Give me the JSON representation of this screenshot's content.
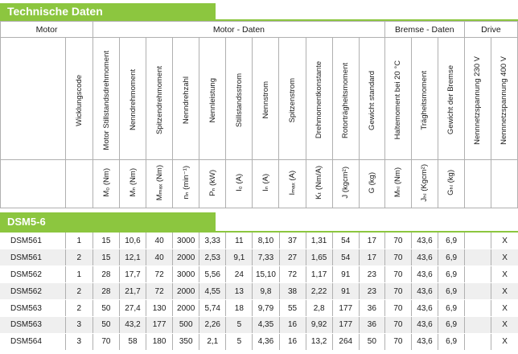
{
  "title": "Technische Daten",
  "groups": [
    "Motor",
    "Motor - Daten",
    "Bremse - Daten",
    "Drive"
  ],
  "columns": [
    {
      "name": "",
      "unit": ""
    },
    {
      "name": "Wicklungscode",
      "unit": ""
    },
    {
      "name": "Motor Stillstandsdrehmoment",
      "unit": "M₀ (Nm)"
    },
    {
      "name": "Nenndrehmoment",
      "unit": "Mₙ (Nm)"
    },
    {
      "name": "Spitzendrehmoment",
      "unit": "Mₘₐₓ (Nm)"
    },
    {
      "name": "Nenndrehzahl",
      "unit": "nₙ (min⁻¹)"
    },
    {
      "name": "Nennleistung",
      "unit": "Pₙ (kW)"
    },
    {
      "name": "Stillstandsstrom",
      "unit": "I₀ (A)"
    },
    {
      "name": "Nennstrom",
      "unit": "Iₙ (A)"
    },
    {
      "name": "Spitzenstrom",
      "unit": "Iₘₐₓ (A)"
    },
    {
      "name": "Drehmomentkonstante",
      "unit": "Kₜ (Nm/A)"
    },
    {
      "name": "Rotorträgheitsmoment",
      "unit": "J (kgcm²)"
    },
    {
      "name": "Gewicht standard",
      "unit": "G (kg)"
    },
    {
      "name": "Haltemoment bei 20 °C",
      "unit": "Mₕₗ (Nm)"
    },
    {
      "name": "Trägheitsmoment",
      "unit": "Jₕₗ (Kgcm²)"
    },
    {
      "name": "Gewicht der Bremse",
      "unit": "Gₕₗ (kg)"
    },
    {
      "name": "Nennnetzspannung 230 V",
      "unit": ""
    },
    {
      "name": "Nennnetzspannung 400 V",
      "unit": ""
    }
  ],
  "section": "DSM5-6",
  "rows": [
    [
      "DSM561",
      "1",
      "15",
      "10,6",
      "40",
      "3000",
      "3,33",
      "11",
      "8,10",
      "37",
      "1,31",
      "54",
      "17",
      "70",
      "43,6",
      "6,9",
      "",
      "X"
    ],
    [
      "DSM561",
      "2",
      "15",
      "12,1",
      "40",
      "2000",
      "2,53",
      "9,1",
      "7,33",
      "27",
      "1,65",
      "54",
      "17",
      "70",
      "43,6",
      "6,9",
      "",
      "X"
    ],
    [
      "DSM562",
      "1",
      "28",
      "17,7",
      "72",
      "3000",
      "5,56",
      "24",
      "15,10",
      "72",
      "1,17",
      "91",
      "23",
      "70",
      "43,6",
      "6,9",
      "",
      "X"
    ],
    [
      "DSM562",
      "2",
      "28",
      "21,7",
      "72",
      "2000",
      "4,55",
      "13",
      "9,8",
      "38",
      "2,22",
      "91",
      "23",
      "70",
      "43,6",
      "6,9",
      "",
      "X"
    ],
    [
      "DSM563",
      "2",
      "50",
      "27,4",
      "130",
      "2000",
      "5,74",
      "18",
      "9,79",
      "55",
      "2,8",
      "177",
      "36",
      "70",
      "43,6",
      "6,9",
      "",
      "X"
    ],
    [
      "DSM563",
      "3",
      "50",
      "43,2",
      "177",
      "500",
      "2,26",
      "5",
      "4,35",
      "16",
      "9,92",
      "177",
      "36",
      "70",
      "43,6",
      "6,9",
      "",
      "X"
    ],
    [
      "DSM564",
      "3",
      "70",
      "58",
      "180",
      "350",
      "2,1",
      "5",
      "4,36",
      "16",
      "13,2",
      "264",
      "50",
      "70",
      "43,6",
      "6,9",
      "",
      "X"
    ]
  ]
}
